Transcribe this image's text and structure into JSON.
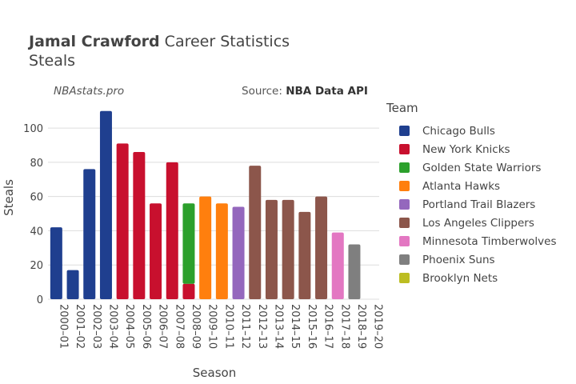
{
  "header": {
    "player": "Jamal Crawford",
    "title_rest": "Career Statistics",
    "subtitle": "Steals",
    "brand": "NBAstats.pro",
    "source_prefix": "Source: ",
    "source_name": "NBA Data API"
  },
  "legend": {
    "title": "Team",
    "items": [
      {
        "label": "Chicago Bulls",
        "color": "#1f3f8f"
      },
      {
        "label": "New York Knicks",
        "color": "#c8102e"
      },
      {
        "label": "Golden State Warriors",
        "color": "#2ca02c"
      },
      {
        "label": "Atlanta Hawks",
        "color": "#ff7f0e"
      },
      {
        "label": "Portland Trail Blazers",
        "color": "#9467bd"
      },
      {
        "label": "Los Angeles Clippers",
        "color": "#8c564b"
      },
      {
        "label": "Minnesota Timberwolves",
        "color": "#e377c2"
      },
      {
        "label": "Phoenix Suns",
        "color": "#7f7f7f"
      },
      {
        "label": "Brooklyn Nets",
        "color": "#bcbd22"
      }
    ]
  },
  "chart_data": {
    "type": "bar",
    "stacked": true,
    "xlabel": "Season",
    "ylabel": "Steals",
    "ylim": [
      0,
      115
    ],
    "yticks": [
      0,
      20,
      40,
      60,
      80,
      100
    ],
    "grid": true,
    "legend_position": "right",
    "categories": [
      "2000–01",
      "2001–02",
      "2002–03",
      "2003–04",
      "2004–05",
      "2005–06",
      "2006–07",
      "2007–08",
      "2008–09",
      "2009–10",
      "2010–11",
      "2011–12",
      "2012–13",
      "2013–14",
      "2014–15",
      "2015–16",
      "2016–17",
      "2017–18",
      "2018–19",
      "2019–20"
    ],
    "series": [
      {
        "name": "Chicago Bulls",
        "color": "#1f3f8f",
        "values": [
          42,
          17,
          76,
          110,
          0,
          0,
          0,
          0,
          0,
          0,
          0,
          0,
          0,
          0,
          0,
          0,
          0,
          0,
          0,
          0
        ]
      },
      {
        "name": "New York Knicks",
        "color": "#c8102e",
        "values": [
          0,
          0,
          0,
          0,
          91,
          86,
          56,
          80,
          9,
          0,
          0,
          0,
          0,
          0,
          0,
          0,
          0,
          0,
          0,
          0
        ]
      },
      {
        "name": "Golden State Warriors",
        "color": "#2ca02c",
        "values": [
          0,
          0,
          0,
          0,
          0,
          0,
          0,
          0,
          47,
          0,
          0,
          0,
          0,
          0,
          0,
          0,
          0,
          0,
          0,
          0
        ]
      },
      {
        "name": "Atlanta Hawks",
        "color": "#ff7f0e",
        "values": [
          0,
          0,
          0,
          0,
          0,
          0,
          0,
          0,
          0,
          60,
          56,
          0,
          0,
          0,
          0,
          0,
          0,
          0,
          0,
          0
        ]
      },
      {
        "name": "Portland Trail Blazers",
        "color": "#9467bd",
        "values": [
          0,
          0,
          0,
          0,
          0,
          0,
          0,
          0,
          0,
          0,
          0,
          54,
          0,
          0,
          0,
          0,
          0,
          0,
          0,
          0
        ]
      },
      {
        "name": "Los Angeles Clippers",
        "color": "#8c564b",
        "values": [
          0,
          0,
          0,
          0,
          0,
          0,
          0,
          0,
          0,
          0,
          0,
          0,
          78,
          58,
          58,
          51,
          60,
          0,
          0,
          0
        ]
      },
      {
        "name": "Minnesota Timberwolves",
        "color": "#e377c2",
        "values": [
          0,
          0,
          0,
          0,
          0,
          0,
          0,
          0,
          0,
          0,
          0,
          0,
          0,
          0,
          0,
          0,
          0,
          39,
          0,
          0
        ]
      },
      {
        "name": "Phoenix Suns",
        "color": "#7f7f7f",
        "values": [
          0,
          0,
          0,
          0,
          0,
          0,
          0,
          0,
          0,
          0,
          0,
          0,
          0,
          0,
          0,
          0,
          0,
          0,
          32,
          0
        ]
      },
      {
        "name": "Brooklyn Nets",
        "color": "#bcbd22",
        "values": [
          0,
          0,
          0,
          0,
          0,
          0,
          0,
          0,
          0,
          0,
          0,
          0,
          0,
          0,
          0,
          0,
          0,
          0,
          0,
          0
        ]
      }
    ]
  }
}
